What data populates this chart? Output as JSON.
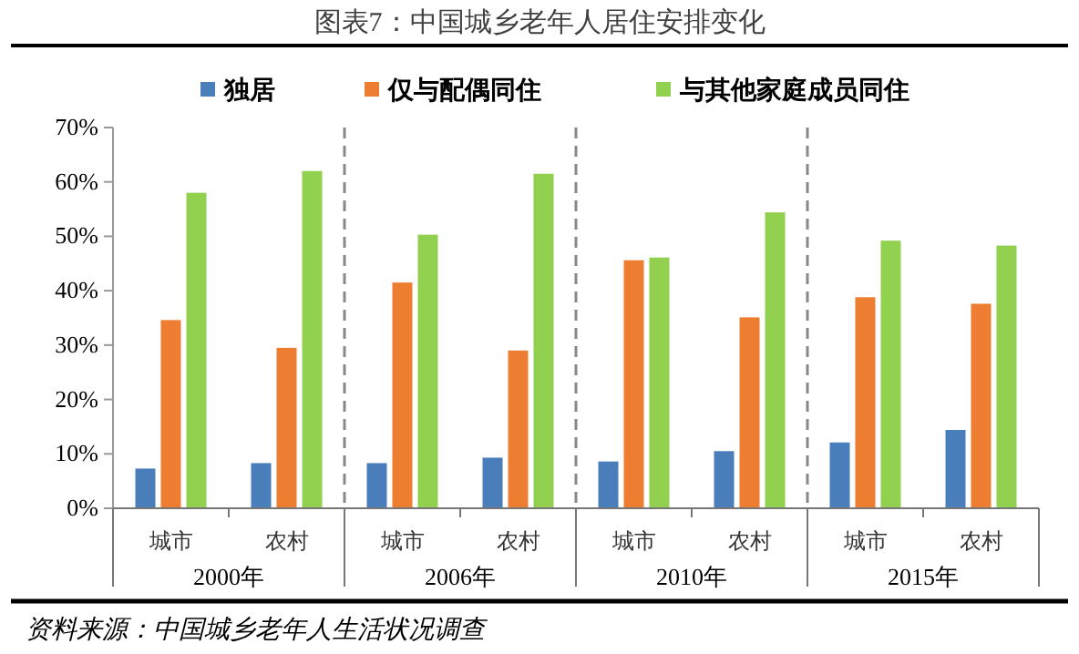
{
  "chart_data": {
    "type": "bar",
    "title": "图表7：中国城乡老年人居住安排变化",
    "categories": [
      "城市",
      "农村",
      "城市",
      "农村",
      "城市",
      "农村",
      "城市",
      "农村"
    ],
    "series": [
      {
        "name": "独居",
        "color": "#4a7ebb",
        "values": [
          7.3,
          8.3,
          8.3,
          9.3,
          8.6,
          10.5,
          12.1,
          14.4
        ]
      },
      {
        "name": "仅与配偶同住",
        "color": "#ed7d31",
        "values": [
          34.6,
          29.5,
          41.5,
          29,
          45.6,
          35.1,
          38.8,
          37.6
        ]
      },
      {
        "name": "与其他家庭成员同住",
        "color": "#92d050",
        "values": [
          58,
          62,
          50.3,
          61.5,
          46.1,
          54.4,
          49.2,
          48.3
        ]
      }
    ],
    "ylim": [
      0,
      70
    ],
    "yticks": [
      {
        "value": 0,
        "label": "0%"
      },
      {
        "value": 10,
        "label": "10%"
      },
      {
        "value": 20,
        "label": "20%"
      },
      {
        "value": 30,
        "label": "30%"
      },
      {
        "value": 40,
        "label": "40%"
      },
      {
        "value": 50,
        "label": "50%"
      },
      {
        "value": 60,
        "label": "60%"
      },
      {
        "value": 70,
        "label": "70%"
      }
    ],
    "legend": "top",
    "annotations": [
      "2000年",
      "2006年",
      "2010年",
      "2015年",
      "资料来源：中国城乡老年人生活状况调查"
    ]
  }
}
